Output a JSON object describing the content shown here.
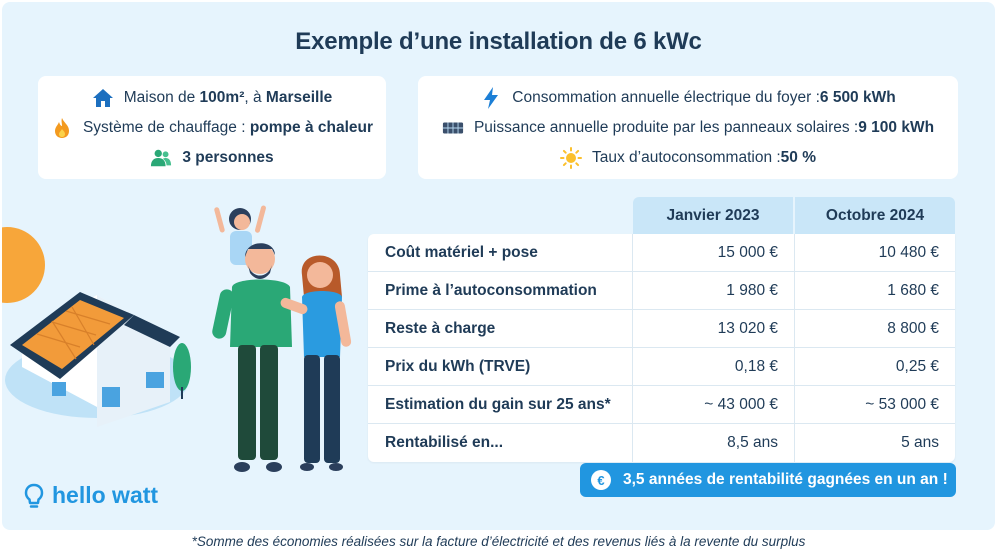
{
  "title": "Exemple d’une installation de 6 kWc",
  "left_box": {
    "line1": {
      "pre": "Maison de ",
      "b1": "100m²",
      "mid": ", à ",
      "b2": "Marseille",
      "icon": "house-icon"
    },
    "line2": {
      "pre": "Système de chauffage : ",
      "b1": "pompe à chaleur",
      "icon": "flame-icon"
    },
    "line3": {
      "b1": "3 personnes",
      "icon": "people-icon"
    }
  },
  "right_box": {
    "line1": {
      "pre": "Consommation annuelle électrique du foyer : ",
      "b1": "6 500 kWh",
      "icon": "lightning-icon"
    },
    "line2": {
      "pre": "Puissance annuelle produite par les panneaux solaires : ",
      "b1": "9 100 kWh",
      "icon": "solar-panel-icon"
    },
    "line3": {
      "pre": "Taux d’autoconsommation : ",
      "b1": "50 %",
      "icon": "sun-icon"
    }
  },
  "table": {
    "columns": [
      "Janvier 2023",
      "Octobre 2024"
    ],
    "rows": [
      {
        "label": "Coût matériel + pose",
        "v1": "15 000 €",
        "v2": "10 480 €"
      },
      {
        "label": "Prime à l’autoconsommation",
        "v1": "1 980 €",
        "v2": "1 680 €"
      },
      {
        "label": "Reste à charge",
        "v1": "13 020 €",
        "v2": "8 800 €"
      },
      {
        "label": "Prix du kWh (TRVE)",
        "v1": "0,18 €",
        "v2": "0,25 €"
      },
      {
        "label": "Estimation du gain sur 25 ans*",
        "v1": "~ 43 000 €",
        "v2": "~ 53 000 €"
      },
      {
        "label": "Rentabilisé en...",
        "v1": "8,5 ans",
        "v2": "5 ans"
      }
    ]
  },
  "banner": {
    "icon": "€",
    "text": "3,5 années de rentabilité gagnées en un an !"
  },
  "logo": {
    "text": "hello watt",
    "icon": "lightbulb-icon"
  },
  "footnote": "*Somme des économies réalisées sur la facture d’électricité et des revenus liés à la revente du surplus",
  "colors": {
    "accent": "#2196e0",
    "text": "#1f3b57",
    "background": "#e6f4fd",
    "header": "#c9e6f8"
  }
}
